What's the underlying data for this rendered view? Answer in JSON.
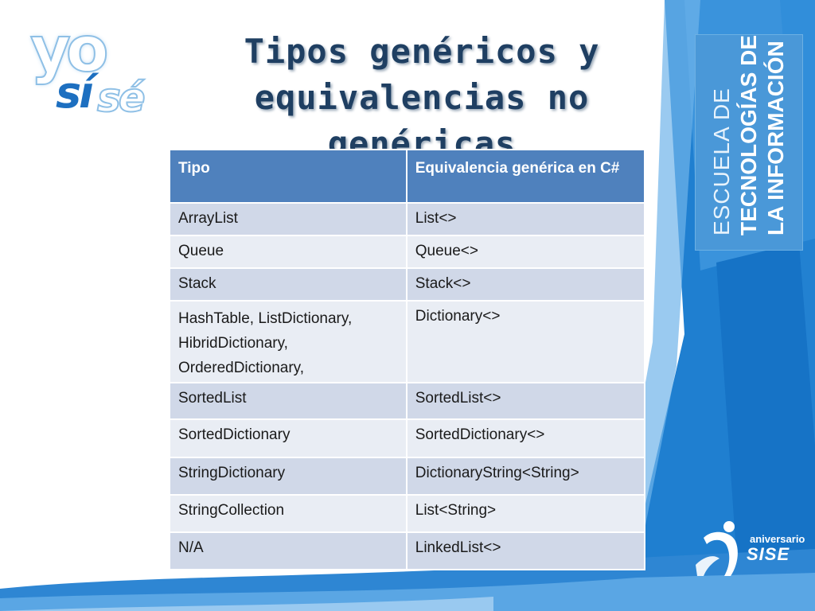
{
  "title": {
    "line1": "Tipos genéricos y",
    "line2": "equivalencias no genéricas"
  },
  "logo": {
    "part1": "yo",
    "part2": "sí",
    "part3": "sé"
  },
  "side_panel": {
    "line1": "ESCUELA DE",
    "line2": "TECNOLOGÍAS DE",
    "line3": "LA INFORMACIÓN"
  },
  "table": {
    "headers": [
      "Tipo",
      "Equivalencia genérica en C#"
    ],
    "rows": [
      {
        "tipo": "ArrayList",
        "equivalencia": "List<>"
      },
      {
        "tipo": "Queue",
        "equivalencia": "Queue<>"
      },
      {
        "tipo": "Stack",
        "equivalencia": "Stack<>"
      },
      {
        "tipo_lines": [
          "HashTable, ListDictionary,",
          "HibridDictionary,",
          "OrderedDictionary,"
        ],
        "equivalencia": "Dictionary<>"
      },
      {
        "tipo": "SortedList",
        "equivalencia": "SortedList<>"
      },
      {
        "tipo": "SortedDictionary",
        "equivalencia": "SortedDictionary<>"
      },
      {
        "tipo": "StringDictionary",
        "equivalencia": "DictionaryString<String>"
      },
      {
        "tipo": "StringCollection",
        "equivalencia": "List<String>"
      },
      {
        "tipo": "N/A",
        "equivalencia": "LinkedList<>"
      }
    ]
  },
  "anniversary": {
    "label": "aniversario",
    "brand": "SISE"
  },
  "colors": {
    "header_bg": "#4f81bd",
    "row_dark": "#d0d8e8",
    "row_light": "#e9edf4",
    "panel_blue": "#4a98d8",
    "title_color": "#1f3f62"
  }
}
